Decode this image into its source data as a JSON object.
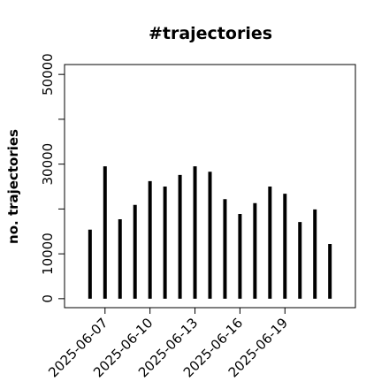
{
  "chart_data": {
    "type": "bar",
    "title": "#trajectories",
    "y_label": "no. trajectories",
    "x": [
      "2025-06-06",
      "2025-06-07",
      "2025-06-08",
      "2025-06-09",
      "2025-06-10",
      "2025-06-11",
      "2025-06-12",
      "2025-06-13",
      "2025-06-14",
      "2025-06-15",
      "2025-06-16",
      "2025-06-17",
      "2025-06-18",
      "2025-06-19",
      "2025-06-20",
      "2025-06-21",
      "2025-06-22"
    ],
    "values": [
      15400,
      29500,
      17700,
      20900,
      26200,
      25000,
      27600,
      29500,
      28300,
      22200,
      18900,
      21300,
      25000,
      23400,
      17100,
      19900,
      12200
    ],
    "color": "#000000",
    "xticks": [
      "2025-06-07",
      "2025-06-10",
      "2025-06-13",
      "2025-06-16",
      "2025-06-19"
    ],
    "ylim": [
      -2000,
      52200
    ],
    "yticks": [
      0,
      10000,
      30000,
      50000
    ],
    "yticks_minor": [
      20000,
      40000
    ]
  }
}
